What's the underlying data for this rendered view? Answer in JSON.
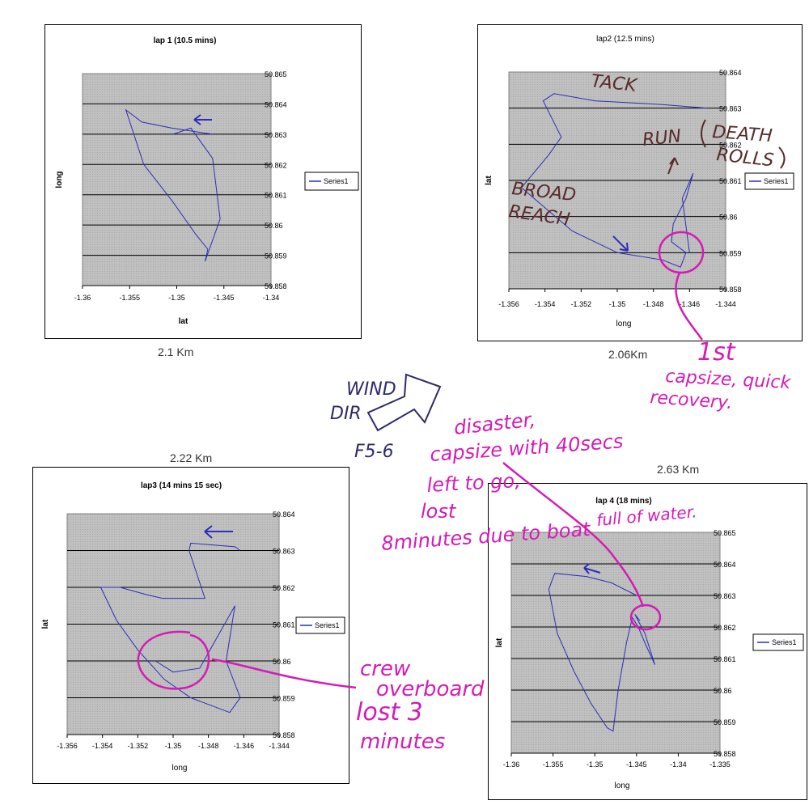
{
  "chart_data": [
    {
      "type": "line",
      "title": "lap 1 (10.5 mins)",
      "xlabel": "lat",
      "ylabel": "long",
      "xlim": [
        -1.36,
        -1.34
      ],
      "ylim": [
        50.858,
        50.865
      ],
      "x_ticks": [
        "-1.36",
        "-1.355",
        "-1.35",
        "-1.345",
        "-1.34"
      ],
      "y_ticks": [
        "50.865",
        "50.864",
        "50.863",
        "50.862",
        "50.861",
        "50.86",
        "50.859",
        "50.858"
      ],
      "legend": "Series1",
      "grid": true,
      "series": [
        {
          "name": "Series1",
          "x": [
            -1.3462,
            -1.3505,
            -1.3537,
            -1.3554,
            -1.3535,
            -1.3505,
            -1.348,
            -1.3467,
            -1.347,
            -1.3454,
            -1.3462,
            -1.3485,
            -1.3504
          ],
          "y": [
            50.863,
            50.8632,
            50.8634,
            50.8638,
            50.862,
            50.8608,
            50.8597,
            50.8592,
            50.8588,
            50.8602,
            50.8622,
            50.8632,
            50.863
          ]
        }
      ]
    },
    {
      "type": "line",
      "title": "lap2 (12.5 mins)",
      "xlabel": "long",
      "ylabel": "lat",
      "xlim": [
        -1.356,
        -1.344
      ],
      "ylim": [
        50.858,
        50.864
      ],
      "x_ticks": [
        "-1.356",
        "-1.354",
        "-1.352",
        "-1.35",
        "-1.348",
        "-1.346",
        "-1.344"
      ],
      "y_ticks": [
        "50.864",
        "50.863",
        "50.862",
        "50.861",
        "50.86",
        "50.859",
        "50.858"
      ],
      "legend": "Series1",
      "grid": true,
      "series": [
        {
          "name": "Series1",
          "x": [
            -1.345,
            -1.3475,
            -1.3512,
            -1.3535,
            -1.3541,
            -1.3531,
            -1.3538,
            -1.3553,
            -1.3525,
            -1.35,
            -1.3475,
            -1.3465,
            -1.3462,
            -1.347,
            -1.3469,
            -1.3462,
            -1.3458,
            -1.3464,
            -1.346
          ],
          "y": [
            50.863,
            50.8631,
            50.8632,
            50.8634,
            50.8632,
            50.8622,
            50.8617,
            50.8608,
            50.8596,
            50.859,
            50.8588,
            50.8586,
            50.859,
            50.8593,
            50.8598,
            50.8605,
            50.8612,
            50.8605,
            50.859
          ]
        }
      ]
    },
    {
      "type": "line",
      "title": "lap3 (14 mins 15 sec)",
      "xlabel": "long",
      "ylabel": "lat",
      "xlim": [
        -1.356,
        -1.344
      ],
      "ylim": [
        50.858,
        50.864
      ],
      "x_ticks": [
        "-1.356",
        "-1.354",
        "-1.352",
        "-1.35",
        "-1.348",
        "-1.346",
        "-1.344"
      ],
      "y_ticks": [
        "50.864",
        "50.863",
        "50.862",
        "50.861",
        "50.86",
        "50.859",
        "50.858"
      ],
      "legend": "Series1",
      "grid": true,
      "series": [
        {
          "name": "Series1",
          "x": [
            -1.3462,
            -1.3465,
            -1.349,
            -1.3491,
            -1.3482,
            -1.3506,
            -1.3515,
            -1.353,
            -1.3541,
            -1.3532,
            -1.352,
            -1.3505,
            -1.349,
            -1.3468,
            -1.3462,
            -1.347,
            -1.3465,
            -1.3485,
            -1.35,
            -1.351
          ],
          "y": [
            50.863,
            50.8631,
            50.8632,
            50.863,
            50.8617,
            50.8617,
            50.8618,
            50.862,
            50.862,
            50.8611,
            50.8603,
            50.8595,
            50.859,
            50.8586,
            50.859,
            50.86,
            50.8615,
            50.8598,
            50.8597,
            50.86
          ]
        }
      ]
    },
    {
      "type": "line",
      "title": "lap 4 (18 mins)",
      "xlabel": "long",
      "ylabel": "lat",
      "xlim": [
        -1.36,
        -1.335
      ],
      "ylim": [
        50.858,
        50.865
      ],
      "x_ticks": [
        "-1.36",
        "-1.355",
        "-1.35",
        "-1.345",
        "-1.34",
        "-1.335"
      ],
      "y_ticks": [
        "50.865",
        "50.864",
        "50.863",
        "50.862",
        "50.861",
        "50.86",
        "50.859",
        "50.858"
      ],
      "legend": "Series1",
      "grid": true,
      "series": [
        {
          "name": "Series1",
          "x": [
            -1.345,
            -1.348,
            -1.351,
            -1.3548,
            -1.3555,
            -1.3545,
            -1.3525,
            -1.3505,
            -1.3485,
            -1.3478,
            -1.3472,
            -1.3462,
            -1.3455,
            -1.3448,
            -1.344,
            -1.3428,
            -1.344,
            -1.3452,
            -1.3446
          ],
          "y": [
            50.863,
            50.8634,
            50.8636,
            50.8637,
            50.8632,
            50.8618,
            50.8606,
            50.8596,
            50.8588,
            50.8587,
            50.86,
            50.8615,
            50.8623,
            50.862,
            50.8615,
            50.8608,
            50.8618,
            50.8624,
            50.8622
          ]
        }
      ]
    }
  ],
  "captions": {
    "lap1_distance": "2.1 Km",
    "lap2_distance": "2.06Km",
    "lap3_distance": "2.22 Km",
    "lap4_distance": "2.63 Km"
  },
  "annotations": {
    "tack": "TACK",
    "run": "RUN",
    "death": "DEATH",
    "rolls": "ROLLS",
    "broad": "BROAD",
    "reach": "REACH",
    "first": "1st",
    "capsize_quick": "capsize, quick",
    "recovery": "recovery.",
    "wind": "WIND",
    "dir": "DIR",
    "force": "F5-6",
    "disaster_1": "disaster,",
    "disaster_2": "capsize with 40secs",
    "disaster_3": "left to go,",
    "disaster_4": "lost",
    "disaster_5": "8minutes due to boat",
    "disaster_6": "full of water.",
    "crew_1": "crew",
    "crew_2": "overboard",
    "crew_3": "lost 3",
    "crew_4": "minutes"
  },
  "colors": {
    "series": "#2a2fb8",
    "plot_bg": "#c0c0c0",
    "gridline": "#000000",
    "pen_magenta": "#d41bb5",
    "pen_navy": "#2b2b6b",
    "pen_brown": "#5a2a2a"
  }
}
